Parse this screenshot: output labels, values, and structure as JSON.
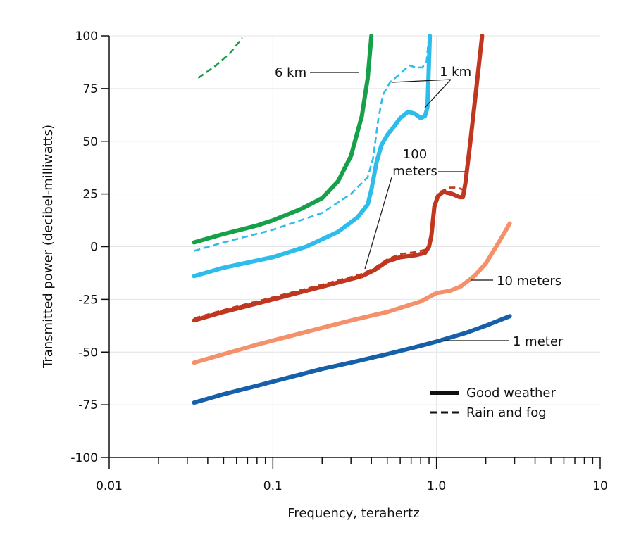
{
  "chart_data": {
    "type": "line",
    "xlabel": "Frequency, terahertz",
    "ylabel": "Transmitted power (decibel-milliwatts)",
    "x_scale": "log",
    "xlim": [
      0.01,
      10
    ],
    "ylim": [
      -100,
      100
    ],
    "x_ticks": [
      {
        "value": 0.01,
        "label": "0.01"
      },
      {
        "value": 0.1,
        "label": "0.1"
      },
      {
        "value": 1,
        "label": "1.0"
      },
      {
        "value": 10,
        "label": "10"
      }
    ],
    "y_ticks": [
      100,
      75,
      50,
      25,
      0,
      -25,
      -50,
      -75,
      -100
    ],
    "grid": true,
    "legend": {
      "position": "bottom-right",
      "entries": [
        {
          "label": "Good weather",
          "style": "solid"
        },
        {
          "label": "Rain and fog",
          "style": "dashed"
        }
      ]
    },
    "series": [
      {
        "style": "solid",
        "color": "#1560a8",
        "points": [
          [
            0.033,
            -74
          ],
          [
            0.05,
            -70
          ],
          [
            0.08,
            -66
          ],
          [
            0.1,
            -64
          ],
          [
            0.2,
            -58
          ],
          [
            0.3,
            -55
          ],
          [
            0.5,
            -51
          ],
          [
            0.8,
            -47
          ],
          [
            1.0,
            -45
          ],
          [
            1.5,
            -41
          ],
          [
            2.0,
            -37.5
          ],
          [
            2.8,
            -33
          ]
        ]
      },
      {
        "style": "solid",
        "color": "#f4906a",
        "points": [
          [
            0.033,
            -55
          ],
          [
            0.05,
            -51
          ],
          [
            0.08,
            -46.5
          ],
          [
            0.1,
            -44.5
          ],
          [
            0.2,
            -38.5
          ],
          [
            0.3,
            -35
          ],
          [
            0.5,
            -31
          ],
          [
            0.8,
            -26
          ],
          [
            1.0,
            -22
          ],
          [
            1.2,
            -21
          ],
          [
            1.4,
            -19
          ],
          [
            1.7,
            -14
          ],
          [
            2.0,
            -8
          ],
          [
            2.4,
            2
          ],
          [
            2.8,
            11
          ]
        ]
      },
      {
        "style": "solid",
        "color": "#c0361f",
        "points": [
          [
            0.033,
            -35
          ],
          [
            0.05,
            -31
          ],
          [
            0.1,
            -25
          ],
          [
            0.2,
            -19
          ],
          [
            0.35,
            -14
          ],
          [
            0.42,
            -11
          ],
          [
            0.5,
            -7
          ],
          [
            0.6,
            -5
          ],
          [
            0.75,
            -4
          ],
          [
            0.85,
            -3
          ],
          [
            0.9,
            0
          ],
          [
            0.93,
            5
          ],
          [
            0.97,
            19
          ],
          [
            1.02,
            24
          ],
          [
            1.1,
            26
          ],
          [
            1.25,
            25
          ],
          [
            1.38,
            23.5
          ],
          [
            1.45,
            23.5
          ],
          [
            1.5,
            30
          ],
          [
            1.6,
            48
          ],
          [
            1.75,
            75
          ],
          [
            1.9,
            100
          ]
        ]
      },
      {
        "style": "dashed",
        "color": "#c0361f",
        "points": [
          [
            0.033,
            -34
          ],
          [
            0.05,
            -30
          ],
          [
            0.1,
            -24
          ],
          [
            0.2,
            -18
          ],
          [
            0.35,
            -13
          ],
          [
            0.42,
            -10
          ],
          [
            0.5,
            -6
          ],
          [
            0.6,
            -3.5
          ],
          [
            0.75,
            -2.5
          ],
          [
            0.85,
            -1.5
          ],
          [
            0.9,
            1
          ]
        ]
      },
      {
        "style": "dashed",
        "color": "#c0361f",
        "points": [
          [
            1.05,
            26
          ],
          [
            1.2,
            28
          ],
          [
            1.35,
            28
          ],
          [
            1.45,
            27
          ]
        ]
      },
      {
        "style": "solid",
        "color": "#2ebcea",
        "points": [
          [
            0.033,
            -14
          ],
          [
            0.05,
            -10
          ],
          [
            0.1,
            -5
          ],
          [
            0.16,
            0
          ],
          [
            0.25,
            7
          ],
          [
            0.33,
            14
          ],
          [
            0.38,
            20
          ],
          [
            0.4,
            27
          ],
          [
            0.43,
            40
          ],
          [
            0.46,
            48
          ],
          [
            0.5,
            53
          ],
          [
            0.55,
            57
          ],
          [
            0.6,
            61
          ],
          [
            0.67,
            64
          ],
          [
            0.74,
            63
          ],
          [
            0.8,
            61
          ],
          [
            0.85,
            62
          ],
          [
            0.88,
            66
          ],
          [
            0.91,
            100
          ]
        ]
      },
      {
        "style": "dashed",
        "color": "#2ebcea",
        "points": [
          [
            0.033,
            -2
          ],
          [
            0.05,
            2
          ],
          [
            0.1,
            8
          ],
          [
            0.2,
            16
          ],
          [
            0.3,
            25
          ],
          [
            0.38,
            33
          ],
          [
            0.41,
            42
          ],
          [
            0.44,
            60
          ],
          [
            0.47,
            72
          ],
          [
            0.52,
            78
          ],
          [
            0.6,
            82
          ],
          [
            0.68,
            86
          ],
          [
            0.75,
            85
          ],
          [
            0.82,
            85
          ],
          [
            0.87,
            88
          ],
          [
            0.9,
            100
          ]
        ]
      },
      {
        "style": "solid",
        "color": "#16a04a",
        "points": [
          [
            0.033,
            2
          ],
          [
            0.05,
            6
          ],
          [
            0.08,
            10
          ],
          [
            0.1,
            12.5
          ],
          [
            0.15,
            18
          ],
          [
            0.2,
            23
          ],
          [
            0.25,
            31
          ],
          [
            0.3,
            43
          ],
          [
            0.35,
            62
          ],
          [
            0.38,
            80
          ],
          [
            0.4,
            100
          ]
        ]
      },
      {
        "style": "dashed",
        "color": "#16a04a",
        "points": [
          [
            0.035,
            80
          ],
          [
            0.045,
            86
          ],
          [
            0.055,
            92
          ],
          [
            0.065,
            99
          ]
        ]
      }
    ],
    "annotations": [
      {
        "lines": [
          "6 km"
        ]
      },
      {
        "lines": [
          "1 km"
        ]
      },
      {
        "lines": [
          "100",
          "meters"
        ]
      },
      {
        "lines": [
          "10 meters"
        ]
      },
      {
        "lines": [
          "1 meter"
        ]
      }
    ]
  }
}
